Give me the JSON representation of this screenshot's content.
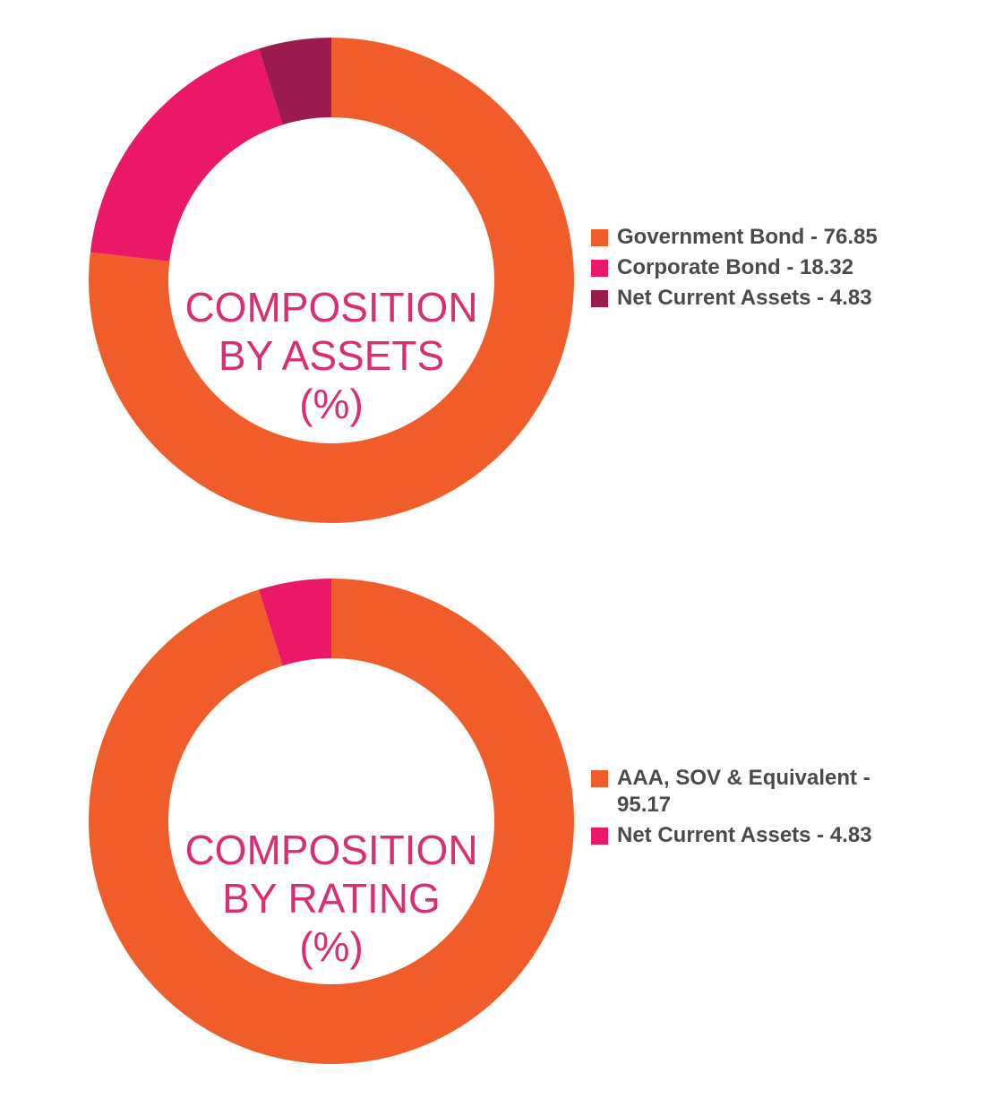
{
  "chart_data": [
    {
      "type": "pie",
      "title": "COMPOSITION BY ASSETS (%)",
      "center_label_lines": [
        "COMPOSITION",
        "BY ASSETS",
        "(%)"
      ],
      "legend_position": "right",
      "series": [
        {
          "name": "Government Bond",
          "value": 76.85,
          "color": "#f15d2a"
        },
        {
          "name": "Corporate Bond",
          "value": 18.32,
          "color": "#ea1866"
        },
        {
          "name": "Net Current Assets",
          "value": 4.83,
          "color": "#9b1b4e"
        }
      ],
      "legend_labels": [
        "Government Bond - 76.85",
        "Corporate Bond - 18.32",
        "Net Current Assets - 4.83"
      ]
    },
    {
      "type": "pie",
      "title": "COMPOSITION BY RATING (%)",
      "center_label_lines": [
        "COMPOSITION",
        "BY RATING",
        "(%)"
      ],
      "legend_position": "right",
      "series": [
        {
          "name": "AAA, SOV & Equivalent",
          "value": 95.17,
          "color": "#f15d2a"
        },
        {
          "name": "Net Current Assets",
          "value": 4.83,
          "color": "#ea1866"
        }
      ],
      "legend_labels": [
        "AAA, SOV & Equivalent - 95.17",
        "Net Current Assets - 4.83"
      ]
    }
  ]
}
